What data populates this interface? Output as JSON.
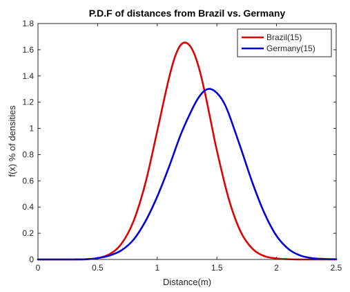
{
  "chart_data": {
    "type": "line",
    "title": "P.D.F of distances from Brazil vs. Germany",
    "xlabel": "Distance(m)",
    "ylabel": "f(x) % of densities",
    "xlim": [
      0,
      2.5
    ],
    "ylim": [
      0,
      1.8
    ],
    "xticks": [
      0,
      0.5,
      1,
      1.5,
      2,
      2.5
    ],
    "xtick_labels": [
      "0",
      "0.5",
      "1",
      "1.5",
      "2",
      "2.5"
    ],
    "yticks": [
      0,
      0.2,
      0.4,
      0.6,
      0.8,
      1.0,
      1.2,
      1.4,
      1.6,
      1.8
    ],
    "ytick_labels": [
      "0",
      "0.2",
      "0.4",
      "0.6",
      "0.8",
      "1",
      "1.2",
      "1.4",
      "1.6",
      "1.8"
    ],
    "grid": false,
    "legend_position": "top-right",
    "series": [
      {
        "name": "Brazil(15)",
        "color": "#e00000",
        "x": [
          0,
          0.1,
          0.2,
          0.3,
          0.4,
          0.5,
          0.6,
          0.7,
          0.8,
          0.9,
          1.0,
          1.05,
          1.1,
          1.15,
          1.2,
          1.25,
          1.3,
          1.35,
          1.4,
          1.45,
          1.5,
          1.6,
          1.7,
          1.8,
          1.9,
          2.0,
          2.1,
          2.2,
          2.3,
          2.4,
          2.5
        ],
        "y": [
          0,
          0,
          0,
          0,
          0.002,
          0.01,
          0.04,
          0.12,
          0.29,
          0.58,
          0.98,
          1.19,
          1.39,
          1.55,
          1.64,
          1.65,
          1.59,
          1.46,
          1.27,
          1.05,
          0.83,
          0.46,
          0.21,
          0.08,
          0.025,
          0.008,
          0.002,
          0,
          0,
          0,
          0
        ]
      },
      {
        "name": "Germany(15)",
        "color": "#0000e0",
        "x": [
          0,
          0.1,
          0.2,
          0.3,
          0.4,
          0.5,
          0.6,
          0.7,
          0.8,
          0.9,
          1.0,
          1.1,
          1.2,
          1.3,
          1.35,
          1.4,
          1.45,
          1.5,
          1.55,
          1.6,
          1.7,
          1.8,
          1.9,
          2.0,
          2.1,
          2.2,
          2.3,
          2.4,
          2.5
        ],
        "y": [
          0,
          0,
          0,
          0,
          0.001,
          0.01,
          0.03,
          0.07,
          0.15,
          0.29,
          0.48,
          0.71,
          0.96,
          1.16,
          1.24,
          1.29,
          1.3,
          1.27,
          1.21,
          1.11,
          0.85,
          0.58,
          0.35,
          0.18,
          0.08,
          0.03,
          0.01,
          0.004,
          0.002
        ]
      }
    ]
  }
}
